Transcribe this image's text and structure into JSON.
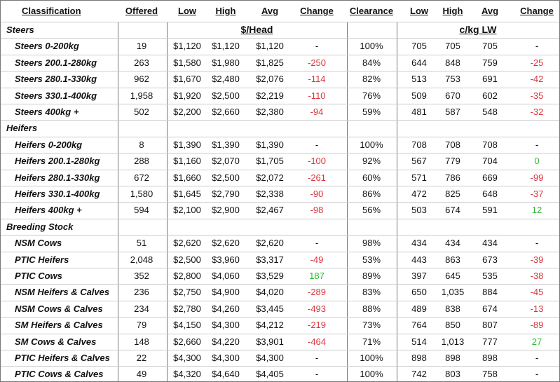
{
  "header": [
    "Classification",
    "Offered",
    "Low",
    "High",
    "Avg",
    "Change",
    "Clearance",
    "Low",
    "High",
    "Avg",
    "Change"
  ],
  "units": {
    "head": "$/Head",
    "kg": "c/kg LW"
  },
  "groups": [
    {
      "name": "Steers",
      "rows": [
        [
          "Steers 0-200kg",
          "19",
          "$1,120",
          "$1,120",
          "$1,120",
          "-",
          "100%",
          "705",
          "705",
          "705",
          "-"
        ],
        [
          "Steers 200.1-280kg",
          "263",
          "$1,580",
          "$1,980",
          "$1,825",
          "-250",
          "84%",
          "644",
          "848",
          "759",
          "-25"
        ],
        [
          "Steers 280.1-330kg",
          "962",
          "$1,670",
          "$2,480",
          "$2,076",
          "-114",
          "82%",
          "513",
          "753",
          "691",
          "-42"
        ],
        [
          "Steers 330.1-400kg",
          "1,958",
          "$1,920",
          "$2,500",
          "$2,219",
          "-110",
          "76%",
          "509",
          "670",
          "602",
          "-35"
        ],
        [
          "Steers 400kg +",
          "502",
          "$2,200",
          "$2,660",
          "$2,380",
          "-94",
          "59%",
          "481",
          "587",
          "548",
          "-32"
        ]
      ]
    },
    {
      "name": "Heifers",
      "rows": [
        [
          "Heifers 0-200kg",
          "8",
          "$1,390",
          "$1,390",
          "$1,390",
          "-",
          "100%",
          "708",
          "708",
          "708",
          "-"
        ],
        [
          "Heifers 200.1-280kg",
          "288",
          "$1,160",
          "$2,070",
          "$1,705",
          "-100",
          "92%",
          "567",
          "779",
          "704",
          "0"
        ],
        [
          "Heifers 280.1-330kg",
          "672",
          "$1,660",
          "$2,500",
          "$2,072",
          "-261",
          "60%",
          "571",
          "786",
          "669",
          "-99"
        ],
        [
          "Heifers 330.1-400kg",
          "1,580",
          "$1,645",
          "$2,790",
          "$2,338",
          "-90",
          "86%",
          "472",
          "825",
          "648",
          "-37"
        ],
        [
          "Heifers 400kg +",
          "594",
          "$2,100",
          "$2,900",
          "$2,467",
          "-98",
          "56%",
          "503",
          "674",
          "591",
          "12"
        ]
      ]
    },
    {
      "name": "Breeding Stock",
      "rows": [
        [
          "NSM Cows",
          "51",
          "$2,620",
          "$2,620",
          "$2,620",
          "-",
          "98%",
          "434",
          "434",
          "434",
          "-"
        ],
        [
          "PTIC Heifers",
          "2,048",
          "$2,500",
          "$3,960",
          "$3,317",
          "-49",
          "53%",
          "443",
          "863",
          "673",
          "-39"
        ],
        [
          "PTIC Cows",
          "352",
          "$2,800",
          "$4,060",
          "$3,529",
          "187",
          "89%",
          "397",
          "645",
          "535",
          "-38"
        ],
        [
          "NSM Heifers & Calves",
          "236",
          "$2,750",
          "$4,900",
          "$4,020",
          "-289",
          "83%",
          "650",
          "1,035",
          "884",
          "-45"
        ],
        [
          "NSM Cows & Calves",
          "234",
          "$2,780",
          "$4,260",
          "$3,445",
          "-493",
          "88%",
          "489",
          "838",
          "674",
          "-13"
        ],
        [
          "SM Heifers & Calves",
          "79",
          "$4,150",
          "$4,300",
          "$4,212",
          "-219",
          "73%",
          "764",
          "850",
          "807",
          "-89"
        ],
        [
          "SM Cows & Calves",
          "148",
          "$2,660",
          "$4,220",
          "$3,901",
          "-464",
          "71%",
          "514",
          "1,013",
          "777",
          "27"
        ],
        [
          "PTIC Heifers & Calves",
          "22",
          "$4,300",
          "$4,300",
          "$4,300",
          "-",
          "100%",
          "898",
          "898",
          "898",
          "-"
        ],
        [
          "PTIC Cows & Calves",
          "49",
          "$4,320",
          "$4,640",
          "$4,405",
          "-",
          "100%",
          "742",
          "803",
          "758",
          "-"
        ]
      ]
    }
  ]
}
